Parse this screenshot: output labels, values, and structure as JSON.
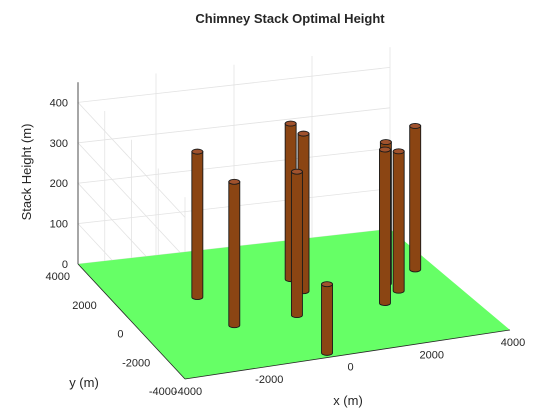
{
  "chart_data": {
    "type": "bar3d",
    "title": "Chimney Stack Optimal Height",
    "xlabel": "x (m)",
    "ylabel": "y (m)",
    "zlabel": "Stack Height (m)",
    "xlim": [
      -4000,
      4000
    ],
    "ylim": [
      -4000,
      4000
    ],
    "zlim": [
      0,
      450
    ],
    "xticks": [
      -4000,
      -2000,
      0,
      2000,
      4000
    ],
    "yticks": [
      -4000,
      -2000,
      0,
      2000,
      4000
    ],
    "zticks": [
      0,
      100,
      200,
      300,
      400
    ],
    "xtick_labels": [
      "-4000",
      "-2000",
      "0",
      "2000",
      "4000"
    ],
    "ytick_labels": [
      "-4000",
      "-2000",
      "0",
      "2000",
      "4000"
    ],
    "ztick_labels": [
      "0",
      "100",
      "200",
      "300",
      "400"
    ],
    "grid": true,
    "ground_color": "#66ff66",
    "stack_color": "#8b4513",
    "stacks": [
      {
        "x": -2000,
        "y": 1000,
        "height": 360
      },
      {
        "x": -1800,
        "y": -1100,
        "height": 355
      },
      {
        "x": -400,
        "y": -3700,
        "height": 170
      },
      {
        "x": -200,
        "y": -1000,
        "height": 355
      },
      {
        "x": 500,
        "y": 500,
        "height": 390
      },
      {
        "x": 500,
        "y": 1400,
        "height": 385
      },
      {
        "x": 2000,
        "y": -1000,
        "height": 380
      },
      {
        "x": 2500,
        "y": 300,
        "height": 350
      },
      {
        "x": 2600,
        "y": -300,
        "height": 345
      },
      {
        "x": 3500,
        "y": 1000,
        "height": 355
      }
    ]
  }
}
